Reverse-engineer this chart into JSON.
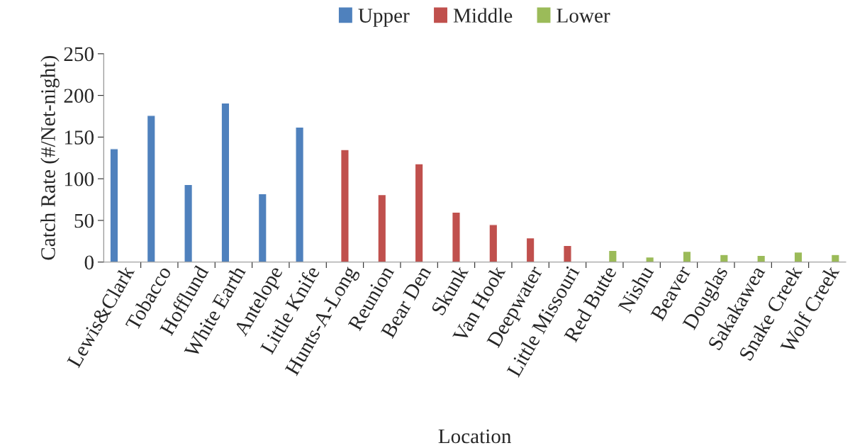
{
  "chart_data": {
    "type": "bar",
    "xlabel": "Location",
    "ylabel": "Catch Rate (#/Net-night)",
    "categories": [
      "Lewis&Clark",
      "Tobacco",
      "Hofflund",
      "White Earth",
      "Antelope",
      "Little Knife",
      "Hunts-A-Long",
      "Reunion",
      "Bear Den",
      "Skunk",
      "Van Hook",
      "Deepwater",
      "Little Missouri",
      "Red Butte",
      "Nishu",
      "Beaver",
      "Douglas",
      "Sakakawea",
      "Snake Creek",
      "Wolf Creek"
    ],
    "series": [
      {
        "name": "Upper",
        "color": "#4f81bd",
        "values": [
          136,
          176,
          93,
          191,
          82,
          162,
          null,
          null,
          null,
          null,
          null,
          null,
          null,
          null,
          null,
          null,
          null,
          null,
          null,
          null
        ]
      },
      {
        "name": "Middle",
        "color": "#c0504d",
        "values": [
          null,
          null,
          null,
          null,
          null,
          null,
          135,
          81,
          118,
          60,
          45,
          29,
          20,
          null,
          null,
          null,
          null,
          null,
          null,
          null
        ]
      },
      {
        "name": "Lower",
        "color": "#9bbb59",
        "values": [
          null,
          null,
          null,
          null,
          null,
          null,
          null,
          null,
          null,
          null,
          null,
          null,
          null,
          14,
          6,
          13,
          9,
          8,
          12,
          9
        ]
      }
    ],
    "ylim": [
      0,
      250
    ],
    "yticks": [
      0,
      50,
      100,
      150,
      200,
      250
    ],
    "grid": false,
    "legend": "top"
  }
}
